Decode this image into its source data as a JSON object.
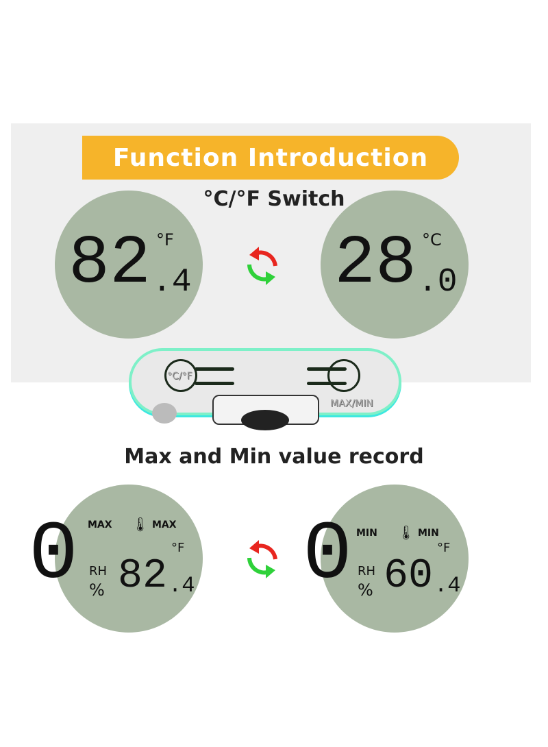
{
  "header": {
    "banner": "Function Introduction",
    "switch_title": "°C/°F Switch"
  },
  "switch": {
    "left": {
      "value_main": "82",
      "value_decimal": ".4",
      "unit": "°F"
    },
    "right": {
      "value_main": "28",
      "value_decimal": ".0",
      "unit": "°C"
    },
    "icon": "swap-arrows-icon"
  },
  "device": {
    "button_left_label": "°C/°F",
    "button_right_label": "MAX/MIN"
  },
  "record": {
    "title": "Max and Min value record",
    "max": {
      "tag_humidity": "MAX",
      "tag_temp": "MAX",
      "humidity_digit": "0",
      "rh": "RH",
      "percent": "%",
      "value_main": "82",
      "value_decimal": ".4",
      "unit": "°F"
    },
    "min": {
      "tag_humidity": "MIN",
      "tag_temp": "MIN",
      "humidity_digit": "0",
      "rh": "RH",
      "percent": "%",
      "value_main": "60",
      "value_decimal": ".4",
      "unit": "°F"
    }
  },
  "colors": {
    "banner": "#f6b42a",
    "lcd": "#a9b8a3",
    "arrow_red": "#e8261f",
    "arrow_green": "#2fd13a"
  }
}
